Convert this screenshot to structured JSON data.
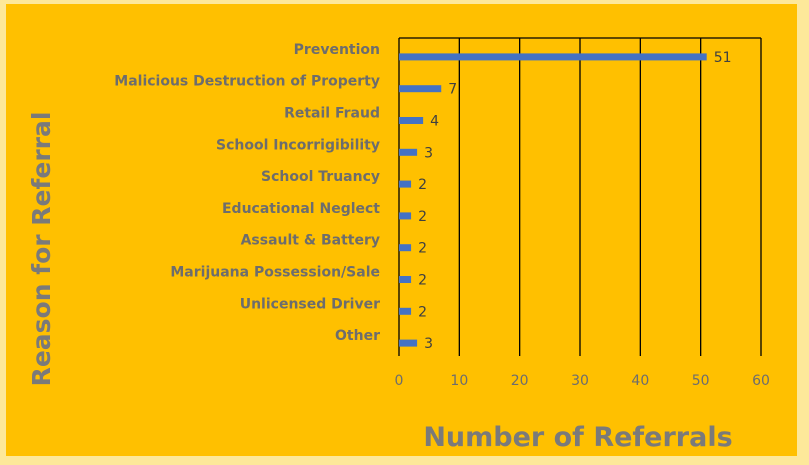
{
  "chart_data": {
    "type": "bar",
    "orientation": "horizontal",
    "categories": [
      "Prevention",
      "Malicious Destruction of Property",
      "Retail Fraud",
      "School Incorrigibility",
      "School Truancy",
      "Educational Neglect",
      "Assault & Battery",
      "Marijuana Possession/Sale",
      "Unlicensed Driver",
      "Other"
    ],
    "values": [
      51,
      7,
      4,
      3,
      2,
      2,
      2,
      2,
      2,
      3
    ],
    "data_labels": [
      "51",
      "7",
      "4",
      "3",
      "2",
      "2",
      "2",
      "2",
      "2",
      "3"
    ],
    "xlabel": "Number of Referrals",
    "ylabel": "Reason for Referral",
    "xlim": [
      0,
      60
    ],
    "xticks": [
      0,
      10,
      20,
      30,
      40,
      50,
      60
    ],
    "xtick_labels": [
      "0",
      "10",
      "20",
      "30",
      "40",
      "50",
      "60"
    ],
    "grid": "vertical",
    "legend": "none",
    "colors": {
      "background": "#ffc000",
      "border": "#fde89a",
      "bar": "#4472c4",
      "gridline": "#000000",
      "label_text": "#6d6d6d"
    }
  }
}
